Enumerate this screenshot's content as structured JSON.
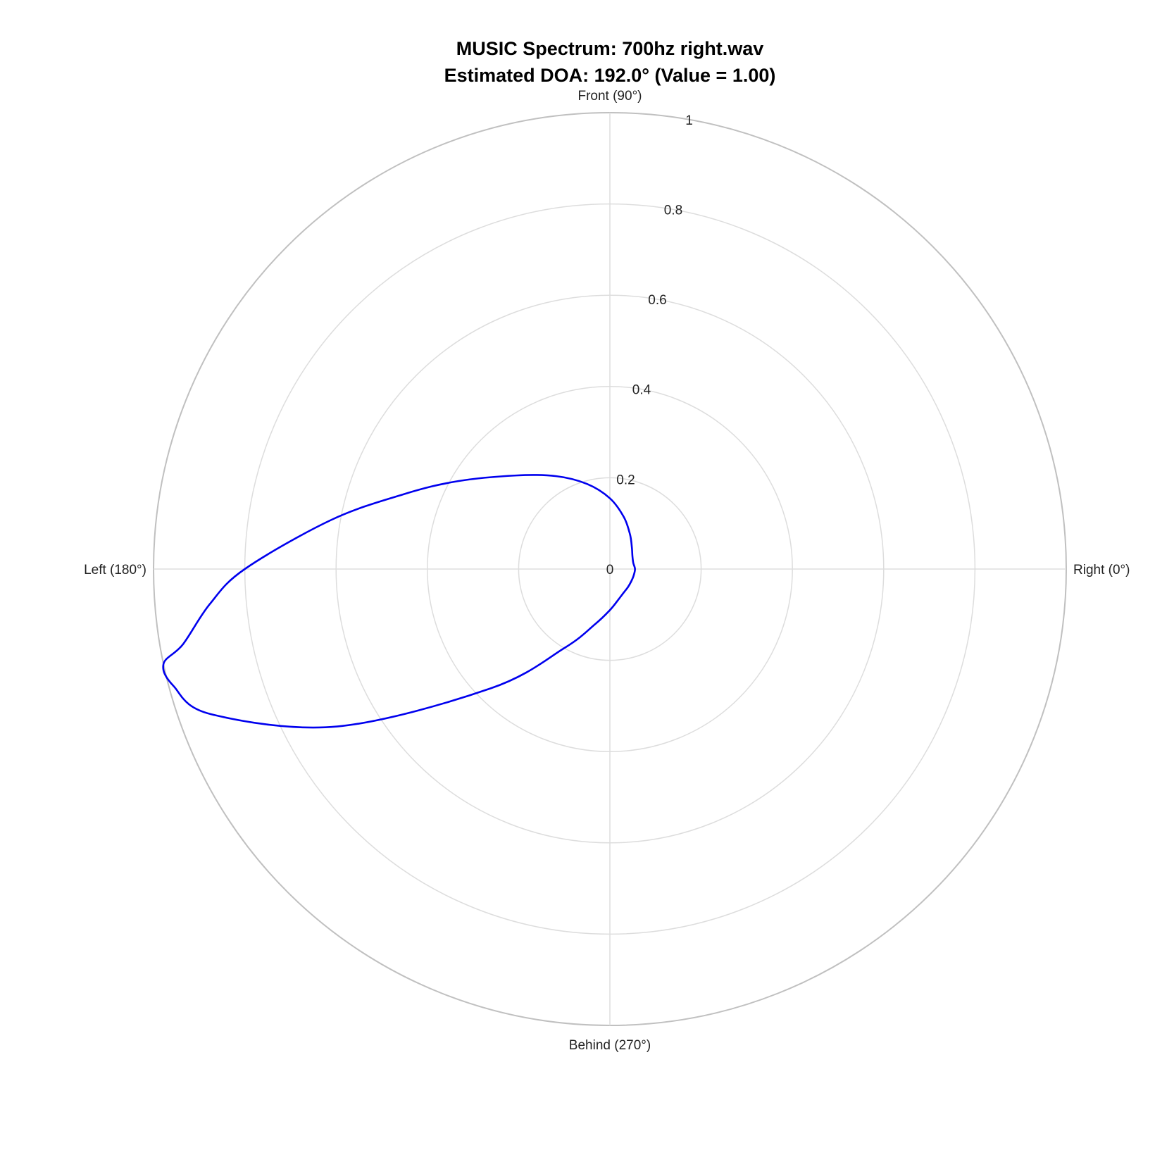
{
  "chart_data": {
    "type": "polar-line",
    "title_line1": "MUSIC Spectrum: 700hz right.wav",
    "title_line2": "Estimated DOA: 192.0° (Value = 1.00)",
    "angle_labels": [
      {
        "angle": 0,
        "label": "Right (0°)"
      },
      {
        "angle": 90,
        "label": "Front (90°)"
      },
      {
        "angle": 180,
        "label": "Left (180°)"
      },
      {
        "angle": 270,
        "label": "Behind (270°)"
      }
    ],
    "radial_ticks": [
      {
        "value": 0,
        "label": "0"
      },
      {
        "value": 0.2,
        "label": "0.2"
      },
      {
        "value": 0.4,
        "label": "0.4"
      },
      {
        "value": 0.6,
        "label": "0.6"
      },
      {
        "value": 0.8,
        "label": "0.8"
      },
      {
        "value": 1.0,
        "label": "1"
      }
    ],
    "rlim": [
      0,
      1
    ],
    "grid": true,
    "line_color": "#0000ee",
    "grid_color": "#dddddd",
    "outer_ring_color": "#c0c0c0",
    "series": [
      {
        "theta": [
          0,
          15,
          30,
          45,
          60,
          75,
          90,
          105,
          120,
          135,
          150,
          160,
          170,
          180,
          185,
          190,
          192,
          195,
          200,
          210,
          225,
          240,
          255,
          270,
          285,
          300,
          315,
          330,
          345,
          360
        ],
        "r": [
          0.055,
          0.053,
          0.057,
          0.068,
          0.088,
          0.118,
          0.155,
          0.193,
          0.235,
          0.29,
          0.385,
          0.48,
          0.62,
          0.8,
          0.88,
          0.95,
          1.0,
          0.99,
          0.93,
          0.69,
          0.37,
          0.2,
          0.125,
          0.09,
          0.07,
          0.06,
          0.056,
          0.054,
          0.054,
          0.055
        ]
      }
    ]
  }
}
